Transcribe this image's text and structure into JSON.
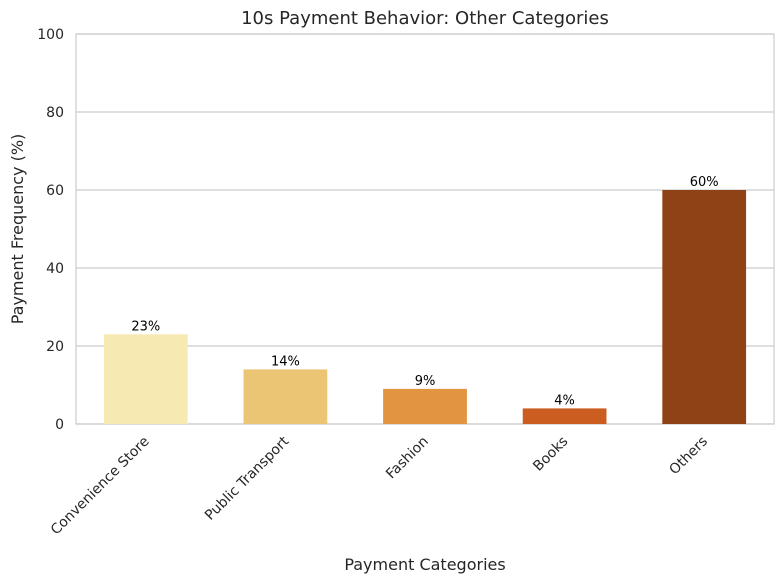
{
  "chart_data": {
    "type": "bar",
    "title": "10s Payment Behavior: Other Categories",
    "xlabel": "Payment Categories",
    "ylabel": "Payment Frequency (%)",
    "categories": [
      "Convenience Store",
      "Public Transport",
      "Fashion",
      "Books",
      "Others"
    ],
    "values": [
      23,
      14,
      9,
      4,
      60
    ],
    "data_labels": [
      "23%",
      "14%",
      "9%",
      "4%",
      "60%"
    ],
    "colors": [
      "#f7e9b2",
      "#ebc574",
      "#e39440",
      "#ca5d1f",
      "#8f4216"
    ],
    "ylim": [
      0,
      100
    ],
    "yticks": [
      0,
      20,
      40,
      60,
      80,
      100
    ],
    "grid": "y",
    "legend": "none"
  }
}
